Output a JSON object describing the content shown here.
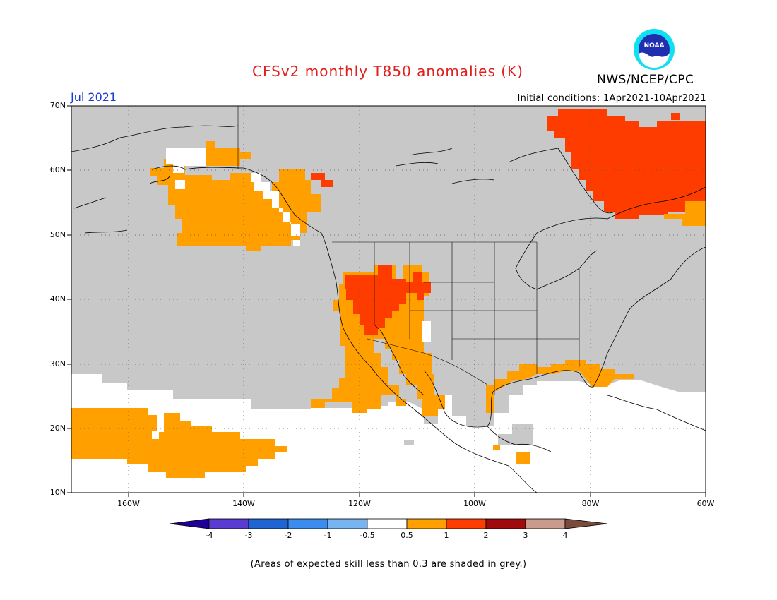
{
  "header": {
    "title": "CFSv2 monthly T850 anomalies (K)",
    "month": "Jul 2021",
    "initial_conditions": "Initial conditions: 1Apr2021-10Apr2021",
    "agency": "NWS/NCEP/CPC",
    "logo_text": "NOAA",
    "logo_icon": "noaa-logo-icon"
  },
  "map": {
    "lon_range": [
      -170,
      -60
    ],
    "lat_range": [
      10,
      70
    ],
    "lat_ticks": [
      "70N",
      "60N",
      "50N",
      "40N",
      "30N",
      "20N",
      "10N"
    ],
    "lon_ticks": [
      "160W",
      "140W",
      "120W",
      "100W",
      "80W",
      "60W"
    ],
    "colors": {
      "grey_low_skill": "#c8c8c8",
      "white": "#ffffff",
      "orange_0_5_1": "#ffa000",
      "red_1_2": "#ff3c00",
      "coast": "#000000"
    }
  },
  "colorbar": {
    "labels": [
      "-4",
      "-3",
      "-2",
      "-1",
      "-0.5",
      "0.5",
      "1",
      "2",
      "3",
      "4"
    ],
    "colors": [
      "#1e0096",
      "#5a3cd2",
      "#1e64d2",
      "#3c8cf0",
      "#78b4f0",
      "#ffffff",
      "#ffa000",
      "#ff3c00",
      "#a00a0a",
      "#c89b8c",
      "#7a4a3a"
    ]
  },
  "note": "(Areas of expected skill less than 0.3 are shaded in grey.)"
}
